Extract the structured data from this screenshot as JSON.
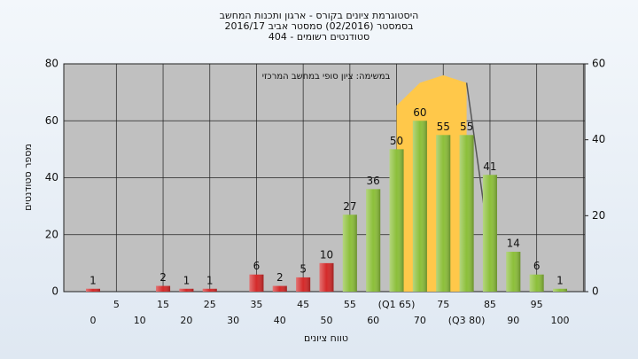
{
  "chart_data": {
    "type": "bar",
    "title": "היסטוגרמת ציונים בקורס - ארגון ותכנות המחשב",
    "subtitle": "בסמסטר  (02/2016)  סמסטר אביב 2016/17",
    "subtitle2": "סטודנטים רשומים - 404",
    "annotation": "במשימה: ציון סופי במחשב המרכזי",
    "x_label": "טווח ציונים",
    "y_label": "מספר סטודנטים",
    "x": [
      0,
      5,
      10,
      15,
      20,
      25,
      30,
      35,
      40,
      45,
      50,
      55,
      60,
      {
        "value": 65,
        "label": "(Q1 65)"
      },
      70,
      75,
      {
        "value": 80,
        "label": "(Q3 80)"
      },
      85,
      90,
      95,
      100
    ],
    "values": [
      1,
      0,
      0,
      2,
      1,
      1,
      0,
      6,
      2,
      5,
      10,
      27,
      36,
      50,
      60,
      55,
      55,
      41,
      14,
      6,
      1
    ],
    "colors": [
      "#d42a2a",
      "#d42a2a",
      "#d42a2a",
      "#d42a2a",
      "#d42a2a",
      "#d42a2a",
      "#d42a2a",
      "#d42a2a",
      "#d42a2a",
      "#d42a2a",
      "#d42a2a",
      "#8cbf3a",
      "#8cbf3a",
      "#8cbf3a",
      "#8cbf3a",
      "#8cbf3a",
      "#8cbf3a",
      "#8cbf3a",
      "#8cbf3a",
      "#8cbf3a",
      "#8cbf3a"
    ],
    "xlim": [
      0,
      100
    ],
    "ylim": [
      0,
      80
    ],
    "yticks": [
      0,
      20,
      40,
      60,
      80
    ],
    "y2lim": [
      0,
      60
    ],
    "y2ticks": [
      0,
      20,
      40,
      60
    ],
    "series": [
      {
        "type": "area",
        "axis": "y2",
        "color": "#ffc84a",
        "x": [
          65,
          70,
          75,
          80
        ],
        "values": [
          49,
          55,
          57,
          55
        ]
      },
      {
        "type": "line",
        "axis": "y2",
        "color": "#555555",
        "x": [
          80,
          84
        ],
        "values": [
          55,
          20
        ]
      }
    ],
    "grid": true
  }
}
